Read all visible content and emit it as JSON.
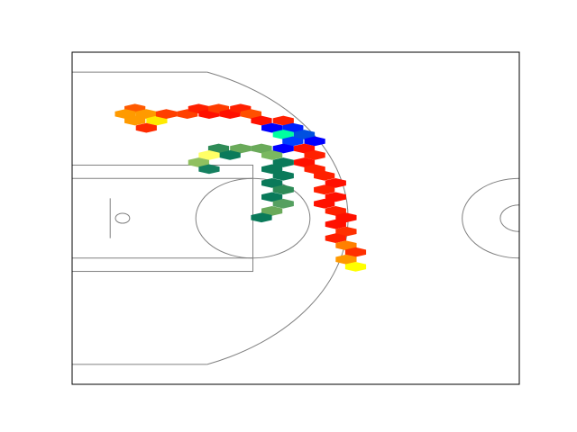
{
  "chart_data": {
    "type": "hexbin",
    "xlim": [
      0,
      47
    ],
    "ylim": [
      -25,
      25
    ],
    "x": [
      6.6,
      5.6,
      7.8,
      6.6,
      8.9,
      7.8,
      9.9,
      12.1,
      13.3,
      14.4,
      15.4,
      16.6,
      17.7,
      18.8,
      19.9,
      21.0,
      22.2,
      23.2,
      22.2,
      23.2,
      24.4,
      25.5,
      22.2,
      24.4,
      25.5,
      24.4,
      25.5,
      26.5,
      27.7,
      26.5,
      27.7,
      26.5,
      27.7,
      28.8,
      27.7,
      28.8,
      27.7,
      28.8,
      29.8,
      28.8,
      29.8,
      15.4,
      17.7,
      19.9,
      16.6,
      14.4,
      13.3,
      14.4,
      21.0,
      22.2,
      21.0,
      22.2,
      21.0,
      22.2,
      21.0,
      22.2,
      21.0,
      19.9
    ],
    "y": [
      16.5,
      15.7,
      15.7,
      14.7,
      14.7,
      13.6,
      15.7,
      15.7,
      16.5,
      15.7,
      16.5,
      15.7,
      16.5,
      15.7,
      14.7,
      13.6,
      14.7,
      13.6,
      12.6,
      11.6,
      12.6,
      11.6,
      10.5,
      10.5,
      9.5,
      8.4,
      7.4,
      6.4,
      5.3,
      4.3,
      3.2,
      2.2,
      1.1,
      0.1,
      -0.9,
      -2.0,
      -3.0,
      -4.1,
      -5.1,
      -6.2,
      -7.3,
      10.5,
      10.5,
      10.5,
      9.5,
      9.5,
      8.4,
      7.4,
      9.5,
      8.4,
      7.4,
      6.4,
      5.3,
      4.3,
      3.2,
      2.2,
      1.1,
      0.1
    ],
    "colors": [
      "#ff5a00",
      "#ff9a00",
      "#ff9a00",
      "#ff9a00",
      "#ffea00",
      "#ff2a00",
      "#ff4000",
      "#ff4000",
      "#ff2000",
      "#ff1000",
      "#ff3c00",
      "#ff1000",
      "#ff2000",
      "#ff5000",
      "#ff1000",
      "#0000ff",
      "#ff2000",
      "#0020ff",
      "#00ffa0",
      "#0040ff",
      "#0050e0",
      "#0000ff",
      "#0000ff",
      "#ff1000",
      "#ff2000",
      "#ff1000",
      "#ff2000",
      "#ff2000",
      "#ff1000",
      "#ff2000",
      "#ff1000",
      "#ff1000",
      "#ff2000",
      "#ff1000",
      "#ff1000",
      "#ff3000",
      "#ff2000",
      "#ff8000",
      "#ff3000",
      "#ff9900",
      "#ffff00",
      "#2e8b57",
      "#6aaa5a",
      "#6aaa5a",
      "#0a7a5a",
      "#ffff66",
      "#90c060",
      "#158060",
      "#7ab860",
      "#0a7a5a",
      "#0a7a5a",
      "#0a7a5a",
      "#0a7a5a",
      "#2e8b57",
      "#0a7a5a",
      "#55a060",
      "#6aaa5a",
      "#0a7a5a"
    ]
  }
}
